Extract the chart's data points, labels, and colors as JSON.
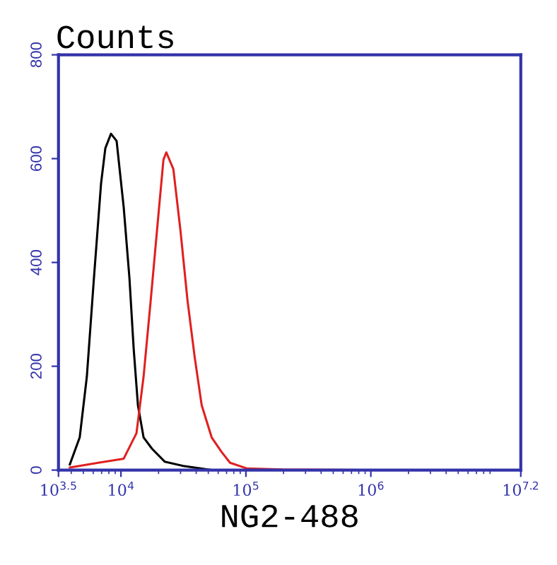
{
  "chart_data": {
    "type": "line",
    "title": "Counts",
    "xlabel": "NG2-488",
    "log": "x",
    "xlim": [
      3162.3,
      15848932
    ],
    "xticks": [
      {
        "value": 3162.3,
        "label": "10$^{3.5}$"
      },
      {
        "value": 10000,
        "label": "10$^{4}$"
      },
      {
        "value": 100000,
        "label": "10$^{5}$"
      },
      {
        "value": 1000000,
        "label": "10$^{6}$"
      },
      {
        "value": 15848932,
        "label": "10$^{7.2}$"
      }
    ],
    "ylim": [
      0,
      800
    ],
    "yticks": [
      0,
      200,
      400,
      600,
      800
    ],
    "grid": false,
    "marker": "none",
    "line_style": "solid",
    "series": [
      {
        "color": "#000000",
        "x": [
          3899,
          4677,
          5333,
          6078,
          6929,
          7499,
          8324,
          9231,
          10520,
          11690,
          12640,
          13670,
          15170,
          17750,
          22460,
          31540,
          53200,
          1000000
        ],
        "values": [
          11,
          63,
          180,
          370,
          552,
          620,
          648,
          634,
          506,
          370,
          234,
          125,
          63,
          41,
          16,
          8,
          0,
          0
        ]
      },
      {
        "color": "#e02020",
        "x": [
          3899,
          6577,
          10520,
          13310,
          15170,
          17290,
          19720,
          21880,
          23070,
          26260,
          29920,
          34120,
          38890,
          44260,
          53200,
          63830,
          74640,
          102300,
          196300,
          1000000
        ],
        "values": [
          5,
          14,
          22,
          71,
          180,
          326,
          479,
          598,
          612,
          580,
          462,
          326,
          218,
          125,
          63,
          35,
          14,
          3,
          1,
          0
        ]
      }
    ]
  }
}
